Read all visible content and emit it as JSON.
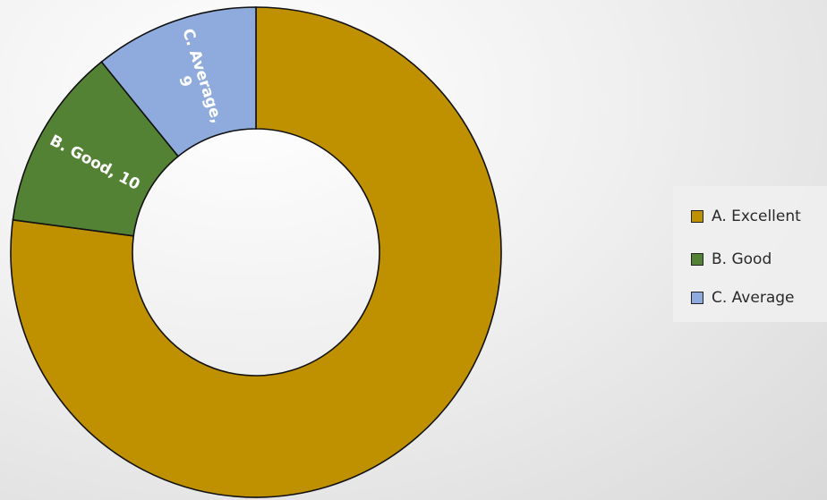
{
  "chart_data": {
    "type": "pie",
    "variant": "donut",
    "categories": [
      "A. Excellent",
      "B. Good",
      "C. Average"
    ],
    "values": [
      64,
      10,
      9
    ],
    "colors": [
      "#BF9000",
      "#548235",
      "#8FAADC"
    ],
    "data_labels": [
      "",
      "B. Good, 10",
      "C. Average,\n9"
    ],
    "legend": {
      "position": "right",
      "entries": [
        "A. Excellent",
        "B. Good",
        "C. Average"
      ]
    },
    "title": ""
  }
}
